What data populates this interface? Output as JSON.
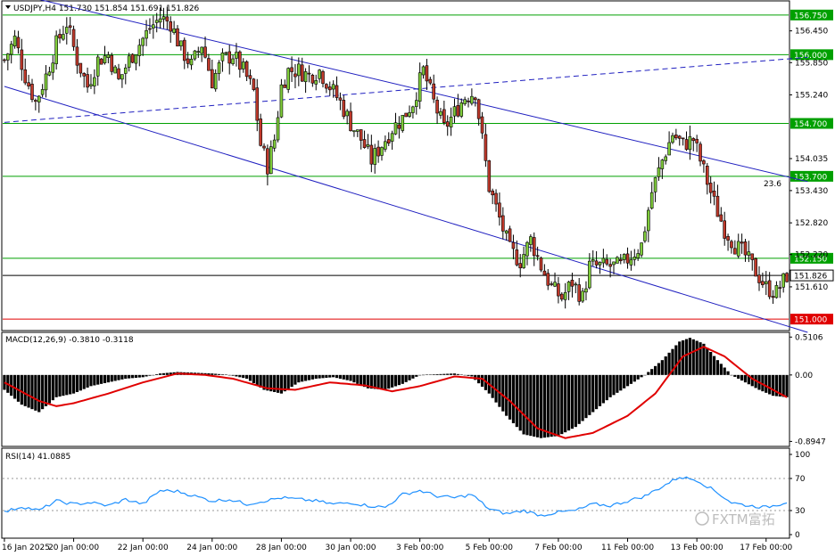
{
  "chart_data": [
    {
      "type": "candlestick",
      "symbol": "USDJPY",
      "timeframe": "H4",
      "header_text": "USDJPY,H4  151.730 151.854 151.691 151.826",
      "ylim": [
        150.8,
        157.0
      ],
      "y_ticks": [
        156.45,
        155.85,
        155.24,
        154.035,
        153.43,
        152.82,
        152.22,
        151.61
      ],
      "levels": [
        {
          "label": "156.750",
          "value": 156.75,
          "color": "#00a000"
        },
        {
          "label": "156.000",
          "value": 156.0,
          "color": "#00a000"
        },
        {
          "label": "154.700",
          "value": 154.7,
          "color": "#00a000"
        },
        {
          "label": "153.700",
          "value": 153.7,
          "color": "#00a000"
        },
        {
          "label": "152.150",
          "value": 152.15,
          "color": "#00a000"
        },
        {
          "label": "151.826",
          "value": 151.826,
          "color": "#000000"
        },
        {
          "label": "151.000",
          "value": 151.0,
          "color": "#e00000"
        }
      ],
      "fib_label": "23.6",
      "trendlines": [
        {
          "name": "upper channel",
          "color": "#2020c0",
          "style": "solid",
          "from": [
            0,
            157.2
          ],
          "to": [
            232,
            153.6
          ]
        },
        {
          "name": "lower channel",
          "color": "#2020c0",
          "style": "solid",
          "from": [
            0,
            155.4
          ],
          "to": [
            232,
            150.75
          ]
        },
        {
          "name": "dashed trend",
          "color": "#2020c0",
          "style": "dashed",
          "from": [
            0,
            154.72
          ],
          "to": [
            232,
            155.95
          ]
        }
      ],
      "x_ticks": [
        {
          "label": "16 Jan 2025",
          "index": 0
        },
        {
          "label": "20 Jan 00:00",
          "index": 20
        },
        {
          "label": "22 Jan 00:00",
          "index": 40
        },
        {
          "label": "24 Jan 00:00",
          "index": 60
        },
        {
          "label": "28 Jan 00:00",
          "index": 80
        },
        {
          "label": "30 Jan 00:00",
          "index": 100
        },
        {
          "label": "3 Feb 00:00",
          "index": 120
        },
        {
          "label": "5 Feb 00:00",
          "index": 140
        },
        {
          "label": "7 Feb 00:00",
          "index": 160
        },
        {
          "label": "11 Feb 00:00",
          "index": 180
        },
        {
          "label": "13 Feb 00:00",
          "index": 200
        },
        {
          "label": "17 Feb 00:00",
          "index": 220
        }
      ],
      "anchors": [
        [
          0,
          155.9
        ],
        [
          3,
          156.3
        ],
        [
          6,
          155.6
        ],
        [
          9,
          155.1
        ],
        [
          12,
          155.6
        ],
        [
          15,
          156.2
        ],
        [
          18,
          156.6
        ],
        [
          21,
          155.9
        ],
        [
          24,
          155.4
        ],
        [
          27,
          155.9
        ],
        [
          30,
          156.0
        ],
        [
          33,
          155.5
        ],
        [
          36,
          155.9
        ],
        [
          39,
          156.2
        ],
        [
          42,
          156.5
        ],
        [
          45,
          156.7
        ],
        [
          48,
          156.6
        ],
        [
          51,
          156.1
        ],
        [
          54,
          155.8
        ],
        [
          57,
          156.2
        ],
        [
          60,
          155.5
        ],
        [
          63,
          155.9
        ],
        [
          66,
          156.0
        ],
        [
          69,
          155.7
        ],
        [
          72,
          155.3
        ],
        [
          74,
          154.3
        ],
        [
          76,
          153.9
        ],
        [
          78,
          154.4
        ],
        [
          80,
          155.4
        ],
        [
          82,
          155.7
        ],
        [
          85,
          155.7
        ],
        [
          88,
          155.6
        ],
        [
          91,
          155.7
        ],
        [
          94,
          155.4
        ],
        [
          97,
          155.1
        ],
        [
          100,
          154.7
        ],
        [
          103,
          154.4
        ],
        [
          106,
          154.0
        ],
        [
          109,
          154.3
        ],
        [
          112,
          154.6
        ],
        [
          115,
          154.8
        ],
        [
          118,
          155.1
        ],
        [
          121,
          155.7
        ],
        [
          124,
          155.1
        ],
        [
          127,
          154.6
        ],
        [
          130,
          154.9
        ],
        [
          133,
          155.2
        ],
        [
          136,
          155.3
        ],
        [
          138,
          154.4
        ],
        [
          140,
          153.5
        ],
        [
          143,
          152.9
        ],
        [
          146,
          152.3
        ],
        [
          149,
          152.1
        ],
        [
          152,
          152.5
        ],
        [
          155,
          152.0
        ],
        [
          158,
          151.6
        ],
        [
          161,
          151.4
        ],
        [
          164,
          151.7
        ],
        [
          167,
          151.4
        ],
        [
          169,
          152.0
        ],
        [
          172,
          152.0
        ],
        [
          175,
          152.0
        ],
        [
          178,
          152.0
        ],
        [
          181,
          152.2
        ],
        [
          184,
          152.4
        ],
        [
          187,
          153.4
        ],
        [
          190,
          154.0
        ],
        [
          193,
          154.5
        ],
        [
          196,
          154.3
        ],
        [
          199,
          154.4
        ],
        [
          202,
          153.8
        ],
        [
          205,
          153.2
        ],
        [
          208,
          152.7
        ],
        [
          211,
          152.4
        ],
        [
          214,
          152.2
        ],
        [
          217,
          151.9
        ],
        [
          220,
          151.6
        ],
        [
          223,
          151.5
        ],
        [
          226,
          151.826
        ]
      ],
      "wick_seed": 7
    },
    {
      "type": "macd-histogram",
      "name": "MACD",
      "label": "MACD(12,26,9) -0.3810 -0.3118",
      "y_ticks": [
        "0.5106",
        "0.00",
        "-0.8947"
      ],
      "ylim": [
        -0.95,
        0.55
      ],
      "anchors": [
        [
          0,
          -0.2
        ],
        [
          5,
          -0.4
        ],
        [
          10,
          -0.5
        ],
        [
          15,
          -0.3
        ],
        [
          20,
          -0.25
        ],
        [
          25,
          -0.15
        ],
        [
          30,
          -0.1
        ],
        [
          35,
          -0.05
        ],
        [
          40,
          -0.03
        ],
        [
          45,
          0.02
        ],
        [
          50,
          0.04
        ],
        [
          55,
          0.03
        ],
        [
          60,
          0.02
        ],
        [
          65,
          0.0
        ],
        [
          70,
          -0.05
        ],
        [
          75,
          -0.2
        ],
        [
          80,
          -0.25
        ],
        [
          85,
          -0.1
        ],
        [
          90,
          -0.05
        ],
        [
          95,
          -0.03
        ],
        [
          100,
          -0.08
        ],
        [
          105,
          -0.18
        ],
        [
          110,
          -0.2
        ],
        [
          115,
          -0.12
        ],
        [
          120,
          0.0
        ],
        [
          125,
          0.01
        ],
        [
          130,
          0.02
        ],
        [
          135,
          -0.02
        ],
        [
          140,
          -0.25
        ],
        [
          145,
          -0.55
        ],
        [
          150,
          -0.8
        ],
        [
          155,
          -0.85
        ],
        [
          160,
          -0.82
        ],
        [
          165,
          -0.7
        ],
        [
          170,
          -0.5
        ],
        [
          175,
          -0.3
        ],
        [
          180,
          -0.15
        ],
        [
          185,
          0.0
        ],
        [
          190,
          0.2
        ],
        [
          195,
          0.45
        ],
        [
          198,
          0.5
        ],
        [
          202,
          0.42
        ],
        [
          206,
          0.2
        ],
        [
          210,
          0.0
        ],
        [
          214,
          -0.1
        ],
        [
          218,
          -0.2
        ],
        [
          222,
          -0.28
        ],
        [
          226,
          -0.3
        ]
      ],
      "signal_anchors": [
        [
          0,
          -0.1
        ],
        [
          10,
          -0.35
        ],
        [
          15,
          -0.42
        ],
        [
          20,
          -0.38
        ],
        [
          30,
          -0.25
        ],
        [
          40,
          -0.1
        ],
        [
          50,
          0.02
        ],
        [
          58,
          0.0
        ],
        [
          66,
          -0.05
        ],
        [
          76,
          -0.18
        ],
        [
          84,
          -0.2
        ],
        [
          94,
          -0.1
        ],
        [
          104,
          -0.14
        ],
        [
          112,
          -0.22
        ],
        [
          120,
          -0.15
        ],
        [
          130,
          -0.02
        ],
        [
          138,
          -0.05
        ],
        [
          146,
          -0.35
        ],
        [
          154,
          -0.72
        ],
        [
          162,
          -0.85
        ],
        [
          170,
          -0.78
        ],
        [
          180,
          -0.55
        ],
        [
          188,
          -0.25
        ],
        [
          196,
          0.25
        ],
        [
          202,
          0.38
        ],
        [
          208,
          0.25
        ],
        [
          216,
          -0.05
        ],
        [
          226,
          -0.3
        ]
      ]
    },
    {
      "type": "line",
      "name": "RSI",
      "label": "RSI(14) 41.0885",
      "y_ticks": [
        "100",
        "70",
        "30",
        "0"
      ],
      "ylim": [
        0,
        100
      ],
      "levels": [
        70,
        30
      ],
      "anchors": [
        [
          0,
          28
        ],
        [
          5,
          35
        ],
        [
          10,
          30
        ],
        [
          15,
          42
        ],
        [
          20,
          38
        ],
        [
          25,
          40
        ],
        [
          30,
          36
        ],
        [
          35,
          44
        ],
        [
          40,
          38
        ],
        [
          45,
          55
        ],
        [
          50,
          54
        ],
        [
          55,
          48
        ],
        [
          60,
          42
        ],
        [
          65,
          44
        ],
        [
          70,
          38
        ],
        [
          75,
          42
        ],
        [
          80,
          46
        ],
        [
          85,
          44
        ],
        [
          90,
          42
        ],
        [
          95,
          38
        ],
        [
          100,
          40
        ],
        [
          105,
          36
        ],
        [
          110,
          34
        ],
        [
          115,
          50
        ],
        [
          120,
          55
        ],
        [
          125,
          48
        ],
        [
          130,
          46
        ],
        [
          135,
          50
        ],
        [
          140,
          32
        ],
        [
          145,
          26
        ],
        [
          150,
          30
        ],
        [
          155,
          24
        ],
        [
          160,
          28
        ],
        [
          165,
          30
        ],
        [
          170,
          38
        ],
        [
          175,
          36
        ],
        [
          180,
          42
        ],
        [
          185,
          48
        ],
        [
          190,
          60
        ],
        [
          195,
          72
        ],
        [
          200,
          68
        ],
        [
          205,
          55
        ],
        [
          210,
          40
        ],
        [
          215,
          36
        ],
        [
          220,
          34
        ],
        [
          224,
          38
        ],
        [
          226,
          41
        ]
      ]
    }
  ],
  "watermark": "FXTM富拓"
}
